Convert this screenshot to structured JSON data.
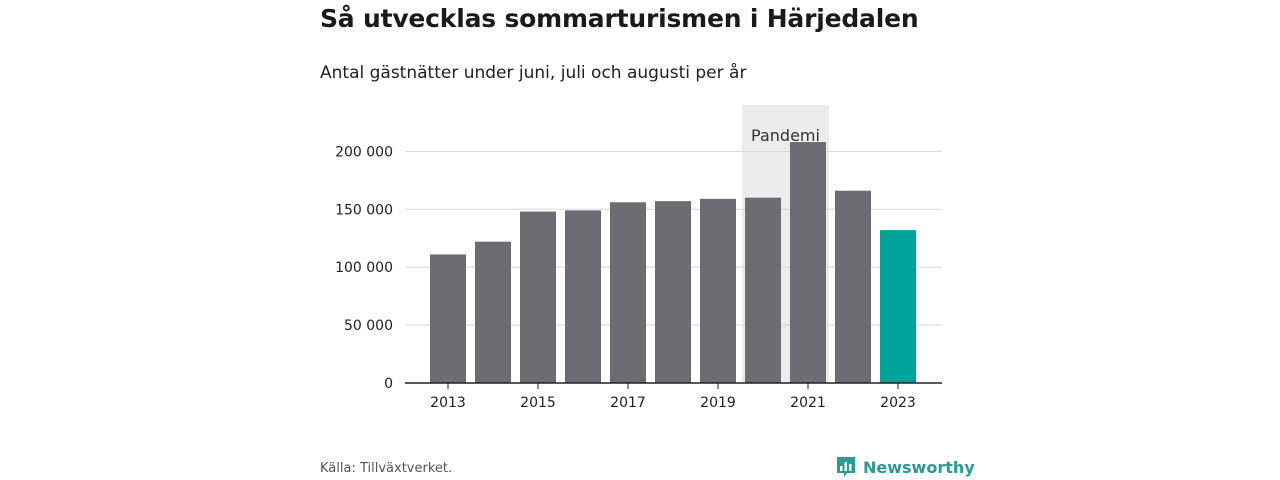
{
  "title": "Så utvecklas sommarturismen i Härjedalen",
  "subtitle": "Antal gästnätter under juni, juli och augusti per år",
  "source": "Källa: Tillväxtverket.",
  "brand": "Newsworthy",
  "colors": {
    "bar": "#6d6c72",
    "highlight": "#00a398",
    "band": "#ececec",
    "grid": "#d8d8d8",
    "brand": "#2b9a8f"
  },
  "chart_data": {
    "type": "bar",
    "categories": [
      "2013",
      "2014",
      "2015",
      "2016",
      "2017",
      "2018",
      "2019",
      "2020",
      "2021",
      "2022",
      "2023"
    ],
    "values": [
      111000,
      122000,
      148000,
      149000,
      156000,
      157000,
      159000,
      160000,
      208000,
      166000,
      132000
    ],
    "highlight_category": "2023",
    "x_tick_labels": [
      "2013",
      "2015",
      "2017",
      "2019",
      "2021",
      "2023"
    ],
    "y_ticks": [
      0,
      50000,
      100000,
      150000,
      200000
    ],
    "y_tick_labels": [
      "0",
      "50 000",
      "100 000",
      "150 000",
      "200 000"
    ],
    "ylim": [
      0,
      240000
    ],
    "grid": true,
    "annotation": {
      "label": "Pandemi",
      "from": "2020",
      "to": "2021"
    }
  }
}
